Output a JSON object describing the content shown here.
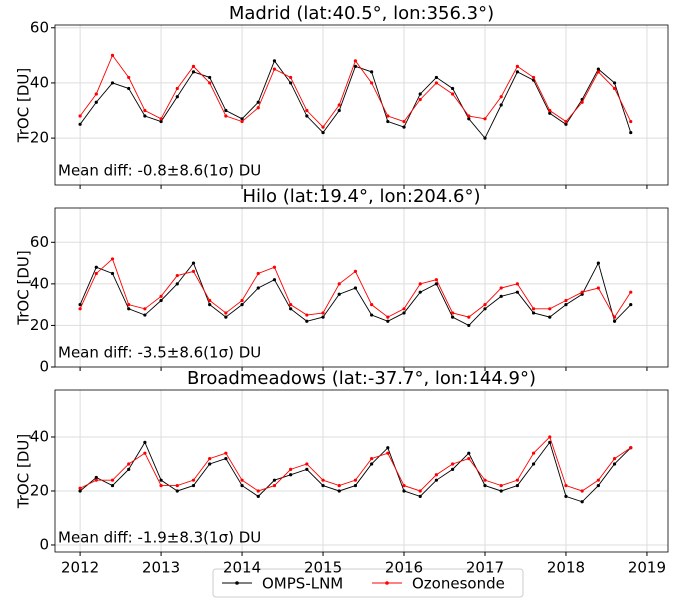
{
  "chart_data": [
    {
      "type": "line",
      "title": "Madrid (lat:40.5°, lon:356.3°)",
      "y_label": "TrOC [DU]",
      "annotation": "Mean diff: -0.8±8.6(1σ) DU",
      "x": [
        2012.0,
        2012.2,
        2012.4,
        2012.6,
        2012.8,
        2013.0,
        2013.2,
        2013.4,
        2013.6,
        2013.8,
        2014.0,
        2014.2,
        2014.4,
        2014.6,
        2014.8,
        2015.0,
        2015.2,
        2015.4,
        2015.6,
        2015.8,
        2016.0,
        2016.2,
        2016.4,
        2016.6,
        2016.8,
        2017.0,
        2017.2,
        2017.4,
        2017.6,
        2017.8,
        2018.0,
        2018.2,
        2018.4,
        2018.6,
        2018.8
      ],
      "series": [
        {
          "name": "OMPS-LNM",
          "color": "#000000",
          "values": [
            25,
            33,
            40,
            38,
            28,
            26,
            35,
            44,
            42,
            30,
            27,
            33,
            48,
            40,
            28,
            22,
            30,
            46,
            44,
            26,
            24,
            36,
            42,
            38,
            27,
            20,
            32,
            44,
            41,
            29,
            25,
            34,
            45,
            40,
            22
          ]
        },
        {
          "name": "Ozonesonde",
          "color": "#ff0000",
          "values": [
            28,
            36,
            50,
            42,
            30,
            27,
            38,
            46,
            40,
            28,
            26,
            31,
            45,
            42,
            30,
            24,
            32,
            48,
            40,
            28,
            26,
            34,
            40,
            36,
            28,
            27,
            35,
            46,
            42,
            30,
            26,
            33,
            44,
            38,
            26
          ]
        }
      ],
      "xlim": [
        2011.69,
        2019.26
      ],
      "xticks": [
        2012,
        2013,
        2014,
        2015,
        2016,
        2017,
        2018,
        2019
      ],
      "ylim": [
        3,
        61
      ],
      "yticks": [
        20,
        40,
        60
      ],
      "grid": true
    },
    {
      "type": "line",
      "title": "Hilo (lat:19.4°, lon:204.6°)",
      "y_label": "TrOC [DU]",
      "annotation": "Mean diff: -3.5±8.6(1σ) DU",
      "x": [
        2012.0,
        2012.2,
        2012.4,
        2012.6,
        2012.8,
        2013.0,
        2013.2,
        2013.4,
        2013.6,
        2013.8,
        2014.0,
        2014.2,
        2014.4,
        2014.6,
        2014.8,
        2015.0,
        2015.2,
        2015.4,
        2015.6,
        2015.8,
        2016.0,
        2016.2,
        2016.4,
        2016.6,
        2016.8,
        2017.0,
        2017.2,
        2017.4,
        2017.6,
        2017.8,
        2018.0,
        2018.2,
        2018.4,
        2018.6,
        2018.8
      ],
      "series": [
        {
          "color": "#000000",
          "values": [
            30,
            48,
            45,
            28,
            25,
            32,
            40,
            50,
            30,
            24,
            30,
            38,
            42,
            28,
            22,
            24,
            35,
            38,
            25,
            22,
            26,
            36,
            40,
            24,
            20,
            28,
            34,
            36,
            26,
            24,
            30,
            35,
            50,
            22,
            30
          ]
        },
        {
          "color": "#ff0000",
          "values": [
            28,
            45,
            52,
            30,
            28,
            34,
            44,
            46,
            32,
            26,
            32,
            45,
            48,
            30,
            25,
            26,
            40,
            46,
            30,
            24,
            28,
            40,
            42,
            26,
            24,
            30,
            38,
            40,
            28,
            28,
            32,
            36,
            38,
            24,
            36
          ]
        }
      ],
      "xlim": [
        2011.69,
        2019.26
      ],
      "xticks": [
        2012,
        2013,
        2014,
        2015,
        2016,
        2017,
        2018,
        2019
      ],
      "ylim": [
        0,
        76.5
      ],
      "yticks": [
        0,
        20,
        40,
        60
      ],
      "grid": true
    },
    {
      "type": "line",
      "title": "Broadmeadows (lat:-37.7°, lon:144.9°)",
      "y_label": "TrOC [DU]",
      "annotation": "Mean diff: -1.9±8.3(1σ) DU",
      "x": [
        2012.0,
        2012.2,
        2012.4,
        2012.6,
        2012.8,
        2013.0,
        2013.2,
        2013.4,
        2013.6,
        2013.8,
        2014.0,
        2014.2,
        2014.4,
        2014.6,
        2014.8,
        2015.0,
        2015.2,
        2015.4,
        2015.6,
        2015.8,
        2016.0,
        2016.2,
        2016.4,
        2016.6,
        2016.8,
        2017.0,
        2017.2,
        2017.4,
        2017.6,
        2017.8,
        2018.0,
        2018.2,
        2018.4,
        2018.6,
        2018.8
      ],
      "series": [
        {
          "color": "#000000",
          "values": [
            20,
            25,
            22,
            28,
            38,
            24,
            20,
            22,
            30,
            32,
            22,
            18,
            24,
            26,
            28,
            22,
            20,
            22,
            30,
            36,
            20,
            18,
            24,
            28,
            34,
            22,
            20,
            22,
            30,
            38,
            18,
            16,
            22,
            30,
            36
          ]
        },
        {
          "color": "#ff0000",
          "values": [
            21,
            24,
            24,
            30,
            34,
            22,
            22,
            24,
            32,
            34,
            24,
            20,
            22,
            28,
            30,
            24,
            22,
            24,
            32,
            34,
            22,
            20,
            26,
            30,
            32,
            24,
            22,
            24,
            34,
            40,
            22,
            20,
            24,
            32,
            36
          ]
        }
      ],
      "xlim": [
        2011.69,
        2019.26
      ],
      "xticks": [
        2012,
        2013,
        2014,
        2015,
        2016,
        2017,
        2018,
        2019
      ],
      "ylim": [
        -2.6,
        57.4
      ],
      "yticks": [
        0,
        20,
        40
      ],
      "grid": true
    }
  ]
}
